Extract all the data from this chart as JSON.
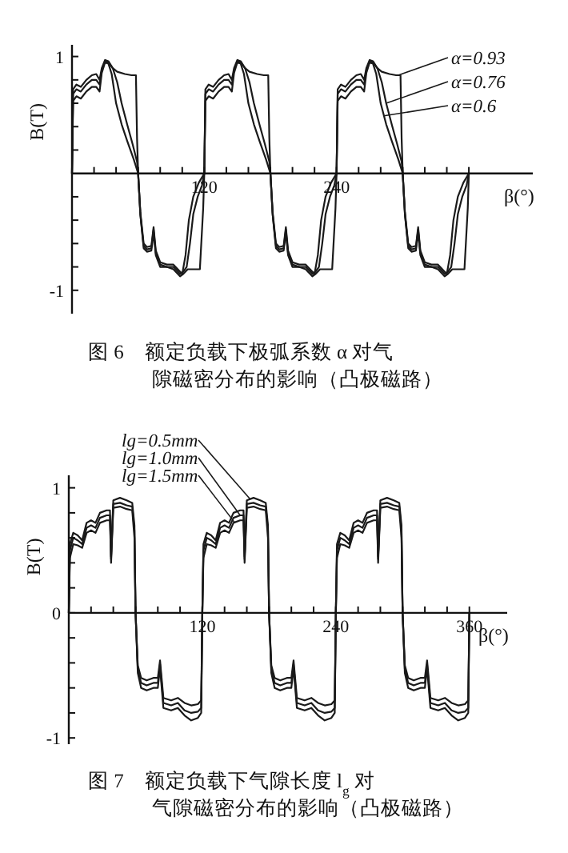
{
  "chart_data": [
    {
      "type": "line",
      "title": "图 6　额定负载下极弧系数 α 对气隙磁密分布的影响（凸极磁路）",
      "xlabel": "β(°)",
      "ylabel": "B(T)",
      "legend": "top right",
      "xlim": [
        0,
        418
      ],
      "ylim": [
        -1.2,
        1.1
      ],
      "xticks": [
        {
          "value": 20,
          "label": null
        },
        {
          "value": 40,
          "label": null
        },
        {
          "value": 60,
          "label": null
        },
        {
          "value": 80,
          "label": null
        },
        {
          "value": 100,
          "label": null
        },
        120,
        {
          "value": 140,
          "label": null
        },
        {
          "value": 160,
          "label": null
        },
        {
          "value": 180,
          "label": null
        },
        {
          "value": 200,
          "label": null
        },
        {
          "value": 220,
          "label": null
        },
        240,
        {
          "value": 260,
          "label": null
        },
        {
          "value": 280,
          "label": null
        },
        {
          "value": 300,
          "label": null
        },
        {
          "value": 320,
          "label": null
        },
        {
          "value": 340,
          "label": null
        },
        {
          "value": 360,
          "label": null
        }
      ],
      "yticks": [
        -1,
        {
          "value": -0.8,
          "label": null
        },
        {
          "value": -0.6,
          "label": null
        },
        {
          "value": -0.4,
          "label": null
        },
        {
          "value": -0.2,
          "label": null
        },
        {
          "value": 0.2,
          "label": null
        },
        {
          "value": 0.4,
          "label": null
        },
        {
          "value": 0.6,
          "label": null
        },
        {
          "value": 0.8,
          "label": null
        },
        1
      ],
      "series": [
        {
          "name": "α=0.93",
          "color": "#1a1a1a",
          "x": [
            0,
            1,
            4,
            8,
            13,
            18,
            22,
            25,
            27,
            30,
            33,
            37,
            41,
            48,
            54,
            58,
            59,
            60,
            62,
            65,
            68,
            72,
            74,
            76,
            80,
            86,
            92,
            98,
            101,
            105,
            110,
            116,
            119,
            120,
            121,
            124,
            128,
            133,
            138,
            142,
            145,
            147,
            150,
            153,
            157,
            161,
            168,
            174,
            178,
            179,
            180,
            182,
            185,
            188,
            192,
            194,
            196,
            200,
            206,
            212,
            218,
            221,
            225,
            230,
            236,
            239,
            240,
            241,
            244,
            248,
            253,
            258,
            262,
            265,
            267,
            270,
            273,
            277,
            281,
            288,
            294,
            298,
            299,
            300,
            302,
            305,
            308,
            312,
            314,
            316,
            320,
            326,
            332,
            338,
            341,
            345,
            350,
            356,
            359,
            360
          ],
          "values": [
            0,
            0.72,
            0.76,
            0.74,
            0.8,
            0.84,
            0.85,
            0.8,
            0.9,
            0.97,
            0.96,
            0.9,
            0.87,
            0.85,
            0.84,
            0.84,
            0.3,
            0,
            -0.35,
            -0.64,
            -0.67,
            -0.66,
            -0.5,
            -0.7,
            -0.8,
            -0.8,
            -0.82,
            -0.88,
            -0.86,
            -0.82,
            -0.82,
            -0.82,
            -0.3,
            0,
            0.72,
            0.76,
            0.74,
            0.8,
            0.84,
            0.85,
            0.8,
            0.9,
            0.97,
            0.96,
            0.9,
            0.87,
            0.85,
            0.84,
            0.84,
            0.3,
            0,
            -0.35,
            -0.64,
            -0.67,
            -0.66,
            -0.5,
            -0.7,
            -0.8,
            -0.8,
            -0.82,
            -0.88,
            -0.86,
            -0.82,
            -0.82,
            -0.82,
            -0.3,
            0,
            0.72,
            0.76,
            0.74,
            0.8,
            0.84,
            0.85,
            0.8,
            0.9,
            0.97,
            0.96,
            0.9,
            0.87,
            0.85,
            0.84,
            0.84,
            0.3,
            0,
            -0.35,
            -0.64,
            -0.67,
            -0.66,
            -0.5,
            -0.7,
            -0.8,
            -0.8,
            -0.82,
            -0.88,
            -0.86,
            -0.82,
            -0.82,
            -0.82,
            -0.3,
            0
          ]
        },
        {
          "name": "α=0.76",
          "color": "#1a1a1a",
          "x": [
            0,
            1,
            4,
            8,
            13,
            18,
            22,
            25,
            27,
            30,
            33,
            37,
            41,
            45,
            50,
            55,
            59,
            60,
            62,
            65,
            68,
            72,
            74,
            76,
            80,
            86,
            92,
            98,
            101,
            104,
            107,
            110,
            114,
            118,
            120,
            121,
            124,
            128,
            133,
            138,
            142,
            145,
            147,
            150,
            153,
            157,
            161,
            165,
            170,
            175,
            179,
            180,
            182,
            185,
            188,
            192,
            194,
            196,
            200,
            206,
            212,
            218,
            221,
            224,
            227,
            230,
            234,
            238,
            240,
            241,
            244,
            248,
            253,
            258,
            262,
            265,
            267,
            270,
            273,
            277,
            281,
            285,
            290,
            295,
            299,
            300,
            302,
            305,
            308,
            312,
            314,
            316,
            320,
            326,
            332,
            338,
            341,
            344,
            347,
            350,
            354,
            358,
            360
          ],
          "values": [
            0,
            0.68,
            0.72,
            0.7,
            0.76,
            0.8,
            0.8,
            0.76,
            0.88,
            0.96,
            0.95,
            0.9,
            0.78,
            0.6,
            0.42,
            0.25,
            0.1,
            0,
            -0.35,
            -0.62,
            -0.65,
            -0.64,
            -0.48,
            -0.68,
            -0.78,
            -0.8,
            -0.8,
            -0.86,
            -0.84,
            -0.8,
            -0.6,
            -0.35,
            -0.2,
            -0.1,
            0,
            0.68,
            0.72,
            0.7,
            0.76,
            0.8,
            0.8,
            0.76,
            0.88,
            0.96,
            0.95,
            0.9,
            0.78,
            0.6,
            0.42,
            0.25,
            0.1,
            0,
            -0.35,
            -0.62,
            -0.65,
            -0.64,
            -0.48,
            -0.68,
            -0.78,
            -0.8,
            -0.8,
            -0.86,
            -0.84,
            -0.8,
            -0.6,
            -0.35,
            -0.2,
            -0.1,
            0,
            0.68,
            0.72,
            0.7,
            0.76,
            0.8,
            0.8,
            0.76,
            0.88,
            0.96,
            0.95,
            0.9,
            0.78,
            0.6,
            0.42,
            0.25,
            0.1,
            0,
            -0.35,
            -0.62,
            -0.65,
            -0.64,
            -0.48,
            -0.68,
            -0.78,
            -0.8,
            -0.8,
            -0.86,
            -0.84,
            -0.8,
            -0.6,
            -0.35,
            -0.2,
            -0.1,
            0
          ]
        },
        {
          "name": "α=0.6",
          "color": "#1a1a1a",
          "x": [
            0,
            1,
            4,
            8,
            13,
            18,
            22,
            25,
            27,
            30,
            33,
            36,
            40,
            45,
            50,
            56,
            60,
            62,
            65,
            68,
            72,
            74,
            76,
            80,
            86,
            92,
            98,
            100,
            103,
            106,
            110,
            115,
            120,
            121,
            124,
            128,
            133,
            138,
            142,
            145,
            147,
            150,
            153,
            156,
            160,
            165,
            170,
            176,
            180,
            182,
            185,
            188,
            192,
            194,
            196,
            200,
            206,
            212,
            218,
            220,
            223,
            226,
            230,
            235,
            240,
            241,
            244,
            248,
            253,
            258,
            262,
            265,
            267,
            270,
            273,
            276,
            280,
            285,
            290,
            296,
            300,
            302,
            305,
            308,
            312,
            314,
            316,
            320,
            326,
            332,
            338,
            340,
            343,
            346,
            350,
            355,
            360
          ],
          "values": [
            0,
            0.62,
            0.66,
            0.64,
            0.7,
            0.74,
            0.74,
            0.7,
            0.86,
            0.95,
            0.94,
            0.85,
            0.6,
            0.42,
            0.28,
            0.12,
            0,
            -0.33,
            -0.6,
            -0.63,
            -0.62,
            -0.46,
            -0.66,
            -0.76,
            -0.78,
            -0.78,
            -0.84,
            -0.86,
            -0.7,
            -0.4,
            -0.2,
            -0.08,
            0,
            0.62,
            0.66,
            0.64,
            0.7,
            0.74,
            0.74,
            0.7,
            0.86,
            0.95,
            0.94,
            0.85,
            0.6,
            0.42,
            0.28,
            0.12,
            0,
            -0.33,
            -0.6,
            -0.63,
            -0.62,
            -0.46,
            -0.66,
            -0.76,
            -0.78,
            -0.78,
            -0.84,
            -0.86,
            -0.7,
            -0.4,
            -0.2,
            -0.08,
            0,
            0.62,
            0.66,
            0.64,
            0.7,
            0.74,
            0.74,
            0.7,
            0.86,
            0.95,
            0.94,
            0.85,
            0.6,
            0.42,
            0.28,
            0.12,
            0,
            -0.33,
            -0.6,
            -0.63,
            -0.62,
            -0.46,
            -0.66,
            -0.76,
            -0.78,
            -0.78,
            -0.84,
            -0.86,
            -0.7,
            -0.4,
            -0.2,
            -0.08,
            0
          ]
        }
      ]
    },
    {
      "type": "line",
      "title": "图 7　额定负载下气隙长度 l$_{g}$ 对气隙磁密分布的影响（凸极磁路）",
      "xlabel": "β(°)",
      "ylabel": "B(T)",
      "legend": "top left",
      "xlim": [
        0,
        394
      ],
      "ylim": [
        -1.05,
        1.1
      ],
      "xticks": [
        {
          "value": 20,
          "label": null
        },
        {
          "value": 40,
          "label": null
        },
        {
          "value": 60,
          "label": null
        },
        {
          "value": 80,
          "label": null
        },
        {
          "value": 100,
          "label": null
        },
        120,
        {
          "value": 140,
          "label": null
        },
        {
          "value": 160,
          "label": null
        },
        {
          "value": 180,
          "label": null
        },
        {
          "value": 200,
          "label": null
        },
        {
          "value": 220,
          "label": null
        },
        240,
        {
          "value": 260,
          "label": null
        },
        {
          "value": 280,
          "label": null
        },
        {
          "value": 300,
          "label": null
        },
        {
          "value": 320,
          "label": null
        },
        {
          "value": 340,
          "label": null
        },
        360
      ],
      "yticks": [
        -1,
        {
          "value": -0.8,
          "label": null
        },
        {
          "value": -0.6,
          "label": null
        },
        {
          "value": -0.4,
          "label": null
        },
        {
          "value": -0.2,
          "label": null
        },
        0,
        {
          "value": 0.2,
          "label": null
        },
        {
          "value": 0.4,
          "label": null
        },
        {
          "value": 0.6,
          "label": null
        },
        {
          "value": 0.8,
          "label": null
        },
        1
      ],
      "x": [
        0,
        1,
        4,
        8,
        12,
        16,
        20,
        24,
        28,
        34,
        37,
        38,
        40,
        46,
        52,
        57,
        59,
        60,
        62,
        65,
        70,
        76,
        80,
        82,
        85,
        92,
        98,
        104,
        110,
        116,
        119,
        120,
        121,
        124,
        128,
        132,
        136,
        140,
        144,
        148,
        154,
        157,
        158,
        160,
        166,
        172,
        177,
        179,
        180,
        182,
        185,
        190,
        196,
        200,
        202,
        205,
        212,
        218,
        224,
        230,
        236,
        239,
        240,
        241,
        244,
        248,
        252,
        256,
        260,
        264,
        268,
        274,
        277,
        278,
        280,
        286,
        292,
        297,
        299,
        300,
        302,
        305,
        310,
        316,
        320,
        322,
        325,
        332,
        338,
        344,
        350,
        356,
        359,
        360
      ],
      "series": [
        {
          "name": "lg=0.5mm",
          "color": "#1a1a1a",
          "values": [
            0,
            0.55,
            0.64,
            0.62,
            0.58,
            0.72,
            0.74,
            0.72,
            0.8,
            0.82,
            0.82,
            0.45,
            0.9,
            0.92,
            0.9,
            0.88,
            0.7,
            0,
            -0.48,
            -0.6,
            -0.62,
            -0.6,
            -0.6,
            -0.44,
            -0.76,
            -0.78,
            -0.76,
            -0.82,
            -0.86,
            -0.84,
            -0.8,
            0,
            0.55,
            0.64,
            0.62,
            0.58,
            0.72,
            0.74,
            0.72,
            0.8,
            0.82,
            0.82,
            0.45,
            0.9,
            0.92,
            0.9,
            0.88,
            0.7,
            0,
            -0.48,
            -0.6,
            -0.62,
            -0.6,
            -0.6,
            -0.44,
            -0.76,
            -0.78,
            -0.76,
            -0.82,
            -0.86,
            -0.84,
            -0.8,
            0,
            0.55,
            0.64,
            0.62,
            0.58,
            0.72,
            0.74,
            0.72,
            0.8,
            0.82,
            0.82,
            0.45,
            0.9,
            0.92,
            0.9,
            0.88,
            0.7,
            0,
            -0.48,
            -0.6,
            -0.62,
            -0.6,
            -0.6,
            -0.44,
            -0.76,
            -0.78,
            -0.76,
            -0.82,
            -0.86,
            -0.84,
            -0.8,
            0
          ]
        },
        {
          "name": "lg=1.0mm",
          "color": "#1a1a1a",
          "values": [
            0,
            0.5,
            0.6,
            0.58,
            0.55,
            0.68,
            0.7,
            0.68,
            0.76,
            0.78,
            0.78,
            0.43,
            0.87,
            0.88,
            0.86,
            0.85,
            0.66,
            0,
            -0.45,
            -0.56,
            -0.58,
            -0.56,
            -0.56,
            -0.41,
            -0.72,
            -0.74,
            -0.72,
            -0.78,
            -0.8,
            -0.79,
            -0.76,
            0,
            0.5,
            0.6,
            0.58,
            0.55,
            0.68,
            0.7,
            0.68,
            0.76,
            0.78,
            0.78,
            0.43,
            0.87,
            0.88,
            0.86,
            0.85,
            0.66,
            0,
            -0.45,
            -0.56,
            -0.58,
            -0.56,
            -0.56,
            -0.41,
            -0.72,
            -0.74,
            -0.72,
            -0.78,
            -0.8,
            -0.79,
            -0.76,
            0,
            0.5,
            0.6,
            0.58,
            0.55,
            0.68,
            0.7,
            0.68,
            0.76,
            0.78,
            0.78,
            0.43,
            0.87,
            0.88,
            0.86,
            0.85,
            0.66,
            0,
            -0.45,
            -0.56,
            -0.58,
            -0.56,
            -0.56,
            -0.41,
            -0.72,
            -0.74,
            -0.72,
            -0.78,
            -0.8,
            -0.79,
            -0.76,
            0
          ]
        },
        {
          "name": "lg=1.5mm",
          "color": "#1a1a1a",
          "values": [
            0,
            0.44,
            0.55,
            0.54,
            0.52,
            0.64,
            0.66,
            0.64,
            0.72,
            0.74,
            0.74,
            0.4,
            0.84,
            0.85,
            0.83,
            0.82,
            0.6,
            0,
            -0.42,
            -0.52,
            -0.54,
            -0.52,
            -0.52,
            -0.38,
            -0.68,
            -0.7,
            -0.68,
            -0.72,
            -0.74,
            -0.73,
            -0.7,
            0,
            0.44,
            0.55,
            0.54,
            0.52,
            0.64,
            0.66,
            0.64,
            0.72,
            0.74,
            0.74,
            0.4,
            0.84,
            0.85,
            0.83,
            0.82,
            0.6,
            0,
            -0.42,
            -0.52,
            -0.54,
            -0.52,
            -0.52,
            -0.38,
            -0.68,
            -0.7,
            -0.68,
            -0.72,
            -0.74,
            -0.73,
            -0.7,
            0,
            0.44,
            0.55,
            0.54,
            0.52,
            0.64,
            0.66,
            0.64,
            0.72,
            0.74,
            0.74,
            0.4,
            0.84,
            0.85,
            0.83,
            0.82,
            0.6,
            0,
            -0.42,
            -0.52,
            -0.54,
            -0.52,
            -0.52,
            -0.38,
            -0.68,
            -0.7,
            -0.68,
            -0.72,
            -0.74,
            -0.73,
            -0.7,
            0
          ]
        }
      ]
    }
  ]
}
